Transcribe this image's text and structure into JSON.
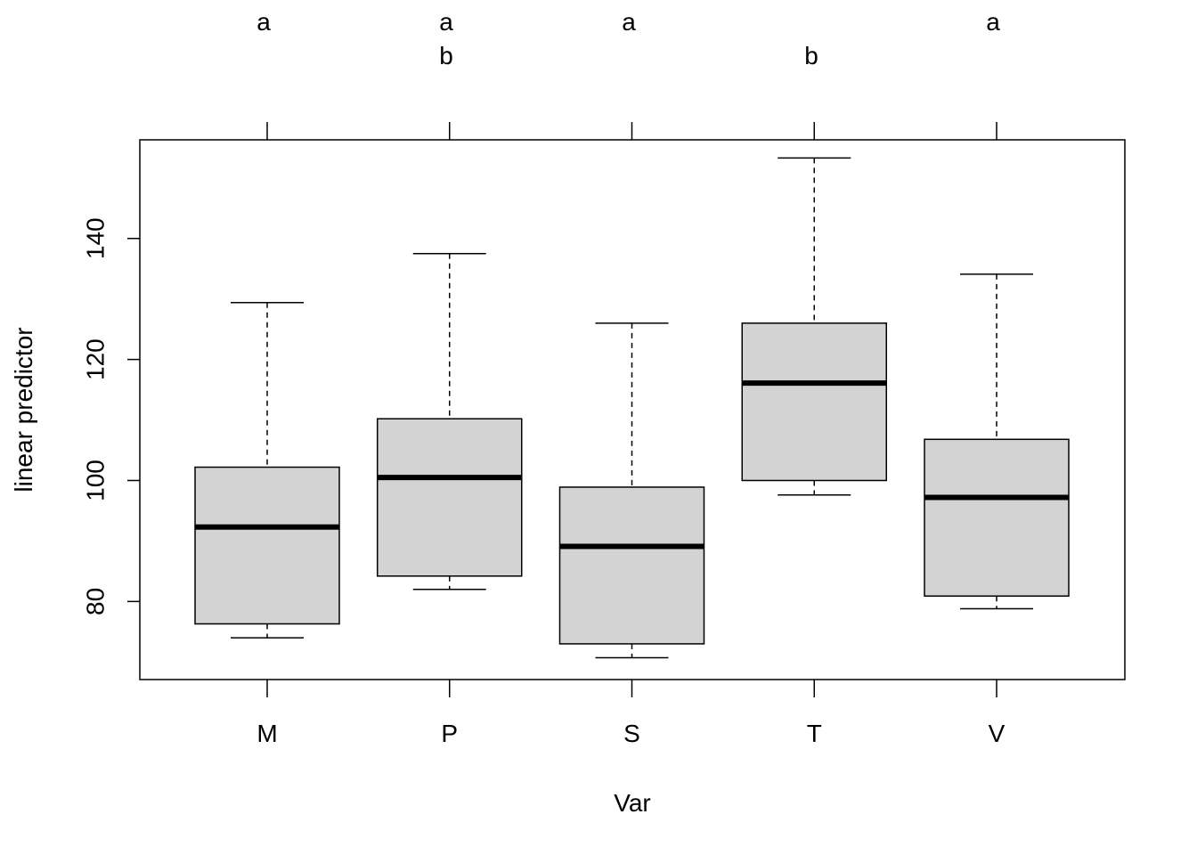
{
  "chart_data": {
    "type": "boxplot",
    "title": "",
    "xlabel": "Var",
    "ylabel": "linear predictor",
    "categories": [
      "M",
      "P",
      "S",
      "T",
      "V"
    ],
    "boxes": [
      {
        "category": "M",
        "whisker_low": 74.0,
        "q1": 76.3,
        "median": 92.3,
        "q3": 102.2,
        "whisker_high": 129.4
      },
      {
        "category": "P",
        "whisker_low": 82.0,
        "q1": 84.2,
        "median": 100.5,
        "q3": 110.2,
        "whisker_high": 137.5
      },
      {
        "category": "S",
        "whisker_low": 70.7,
        "q1": 73.0,
        "median": 89.1,
        "q3": 98.9,
        "whisker_high": 126.0
      },
      {
        "category": "T",
        "whisker_low": 97.6,
        "q1": 100.0,
        "median": 116.1,
        "q3": 126.0,
        "whisker_high": 153.3
      },
      {
        "category": "V",
        "whisker_low": 78.8,
        "q1": 80.9,
        "median": 97.2,
        "q3": 106.8,
        "whisker_high": 134.1
      }
    ],
    "group_letters": [
      [
        "a"
      ],
      [
        "a",
        "b"
      ],
      [
        "a"
      ],
      [
        "",
        "b"
      ],
      [
        "a"
      ]
    ],
    "y_ticks": [
      "80",
      "100",
      "120",
      "140"
    ],
    "y_tick_values": [
      80,
      100,
      120,
      140
    ],
    "ylim": [
      67.1,
      156.3
    ],
    "box_fill": "#d3d3d3",
    "grid": false
  }
}
